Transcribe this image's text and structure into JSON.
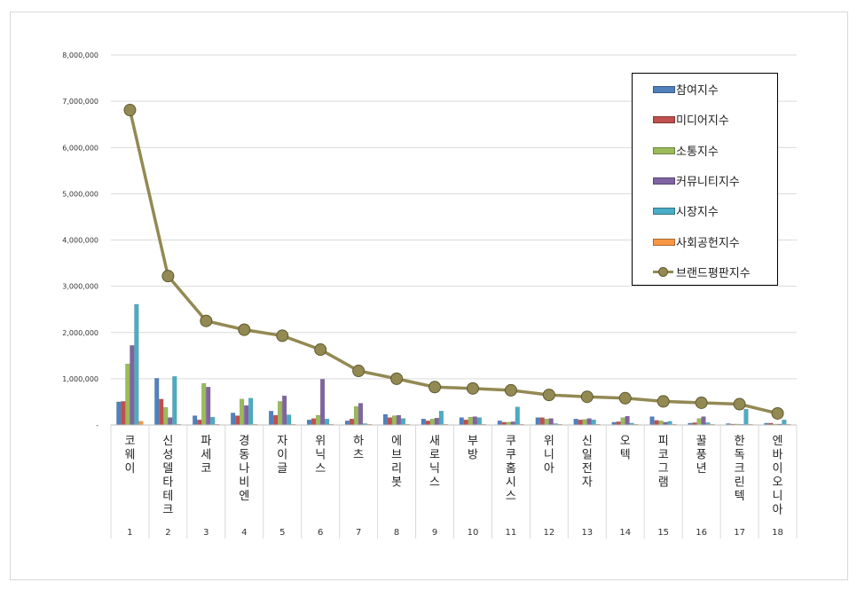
{
  "chart_data": {
    "type": "bar",
    "categories": [
      "1",
      "2",
      "3",
      "4",
      "5",
      "6",
      "7",
      "8",
      "9",
      "10",
      "11",
      "12",
      "13",
      "14",
      "15",
      "16",
      "17",
      "18"
    ],
    "brands": [
      "코웨이",
      "신성델타테크",
      "파세코",
      "경동나비엔",
      "자이글",
      "위닉스",
      "하츠",
      "에브리봇",
      "새로닉스",
      "부방",
      "쿠쿠홈시스",
      "위니아",
      "신일전자",
      "오텍",
      "피코그램",
      "꿀풍년",
      "한독크린텍",
      "엔바이오니아"
    ],
    "ylim": [
      0,
      8000000
    ],
    "yticks": [
      "-",
      "1,000,000",
      "2,000,000",
      "3,000,000",
      "4,000,000",
      "5,000,000",
      "6,000,000",
      "7,000,000",
      "8,000,000"
    ],
    "grid": true,
    "legend_position": "top-right",
    "series": [
      {
        "name": "참여지수",
        "color": "#4f81bd",
        "values": [
          500000,
          1010000,
          200000,
          260000,
          300000,
          110000,
          90000,
          230000,
          130000,
          160000,
          90000,
          160000,
          130000,
          60000,
          180000,
          40000,
          30000,
          40000
        ]
      },
      {
        "name": "미디어지수",
        "color": "#c0504d",
        "values": [
          510000,
          560000,
          110000,
          200000,
          210000,
          140000,
          130000,
          160000,
          90000,
          110000,
          60000,
          160000,
          110000,
          70000,
          100000,
          50000,
          20000,
          40000
        ]
      },
      {
        "name": "소통지수",
        "color": "#9bbb59",
        "values": [
          1320000,
          380000,
          900000,
          560000,
          510000,
          210000,
          400000,
          200000,
          130000,
          170000,
          60000,
          130000,
          120000,
          160000,
          90000,
          140000,
          20000,
          20000
        ]
      },
      {
        "name": "커뮤니티지수",
        "color": "#8064a2",
        "values": [
          1720000,
          160000,
          820000,
          420000,
          630000,
          990000,
          470000,
          210000,
          150000,
          180000,
          70000,
          140000,
          140000,
          190000,
          60000,
          180000,
          10000,
          20000
        ]
      },
      {
        "name": "시장지수",
        "color": "#4bacc6",
        "values": [
          2610000,
          1050000,
          170000,
          580000,
          220000,
          130000,
          30000,
          140000,
          300000,
          160000,
          390000,
          30000,
          110000,
          40000,
          80000,
          50000,
          340000,
          110000
        ]
      },
      {
        "name": "사회공헌지수",
        "color": "#f79646",
        "values": [
          80000,
          10000,
          10000,
          10000,
          10000,
          10000,
          10000,
          10000,
          10000,
          10000,
          10000,
          10000,
          10000,
          10000,
          10000,
          10000,
          10000,
          10000
        ]
      }
    ],
    "line": {
      "name": "브랜드평판지수",
      "color": "#938953",
      "values": [
        6810000,
        3220000,
        2250000,
        2060000,
        1930000,
        1630000,
        1170000,
        1000000,
        820000,
        790000,
        750000,
        650000,
        610000,
        580000,
        510000,
        480000,
        450000,
        250000
      ]
    }
  }
}
